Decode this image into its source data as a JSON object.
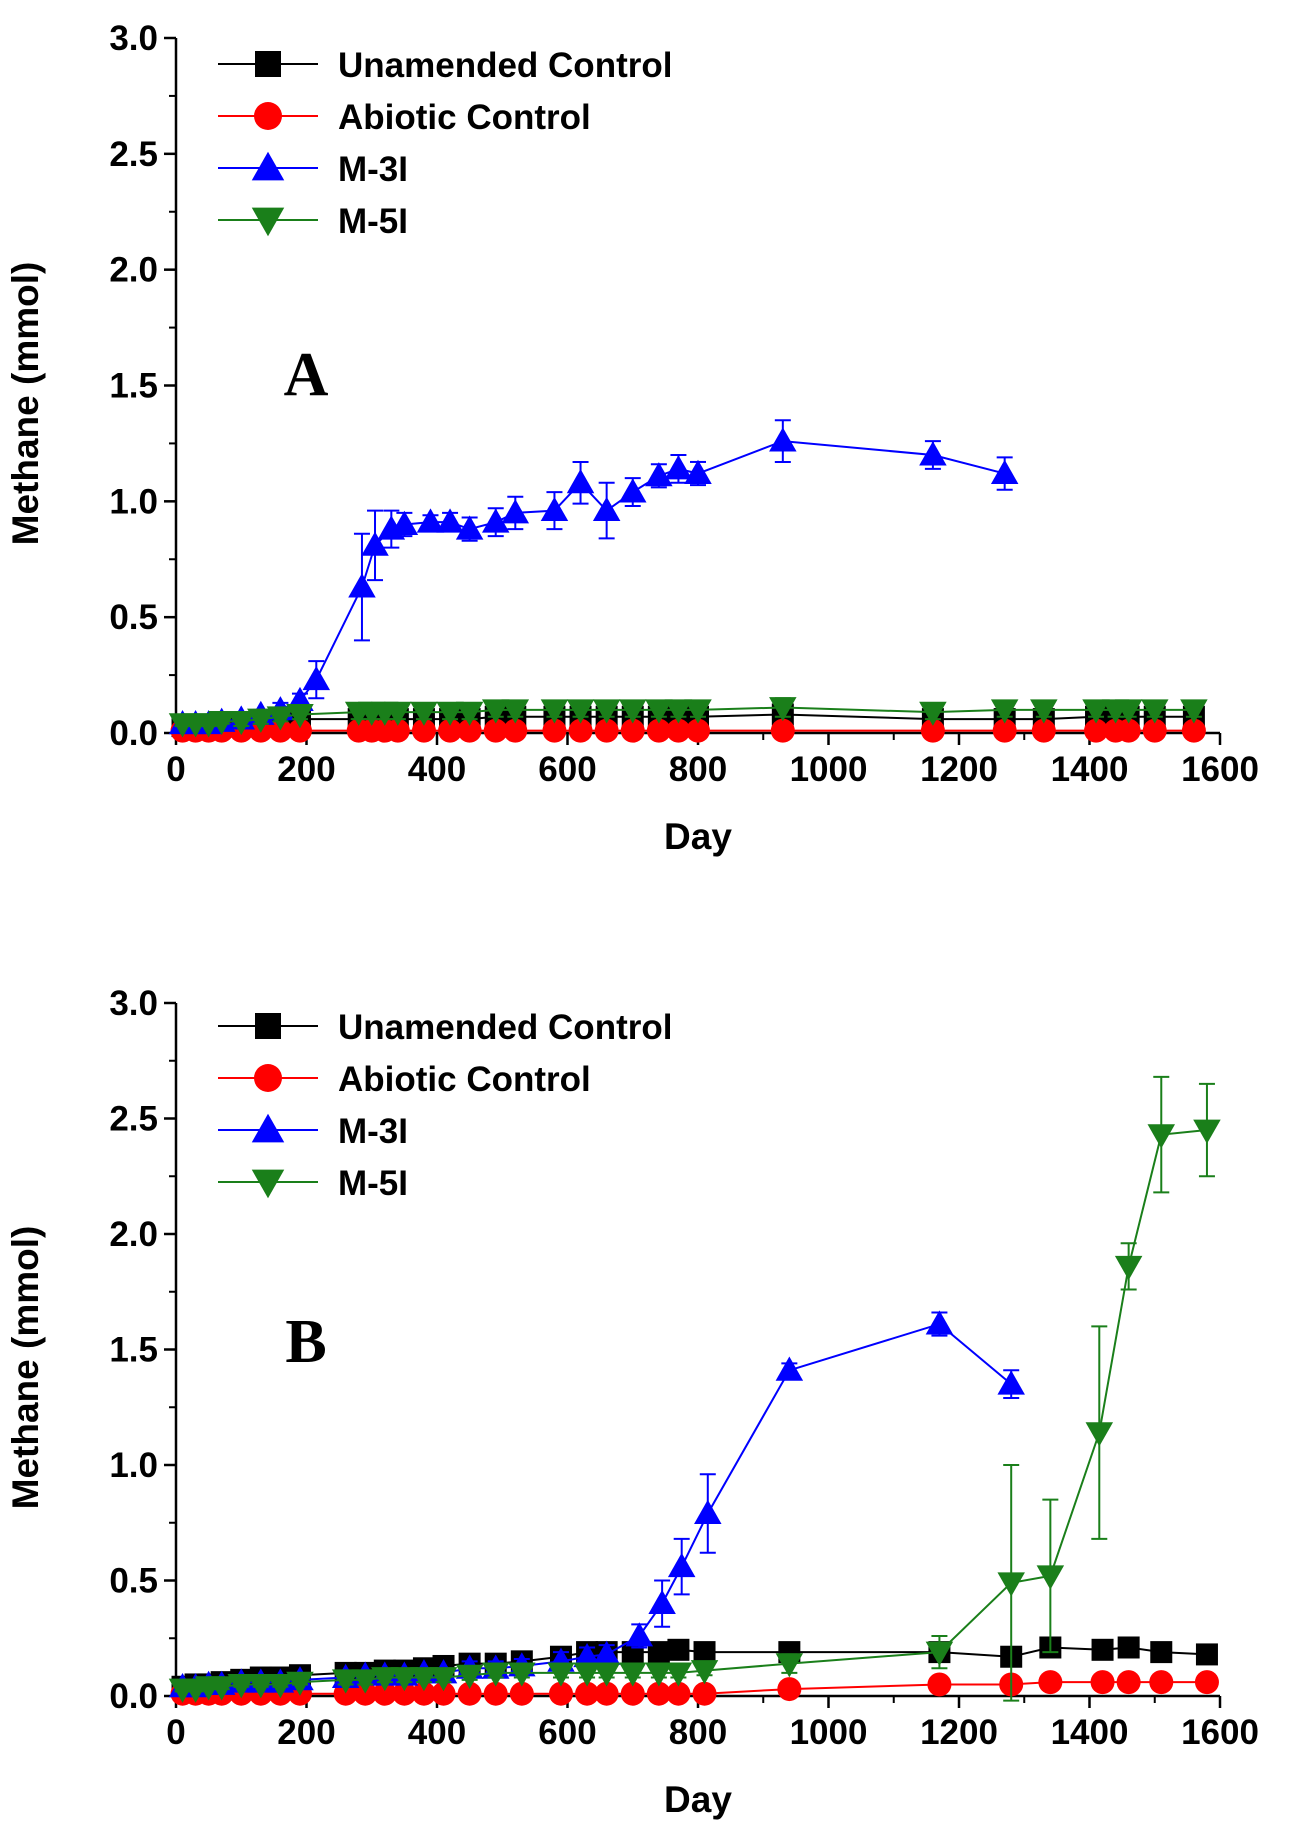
{
  "chart_data": [
    {
      "panel": "A",
      "type": "line",
      "xlabel": "Day",
      "ylabel": "Methane (mmol)",
      "xlim": [
        0,
        1600
      ],
      "ylim": [
        0,
        3.0
      ],
      "xticks": [
        0,
        200,
        400,
        600,
        800,
        1000,
        1200,
        1400,
        1600
      ],
      "xtick_labels": [
        "0",
        "200",
        "400",
        "600",
        "800",
        "1000",
        "1200",
        "1400",
        "1600"
      ],
      "yticks": [
        0,
        0.5,
        1.0,
        1.5,
        2.0,
        2.5,
        3.0
      ],
      "ytick_labels": [
        "0.0",
        "0.5",
        "1.0",
        "1.5",
        "2.0",
        "2.5",
        "3.0"
      ],
      "legend_position": "top-left",
      "series": [
        {
          "name": "Unamended Control",
          "color": "#000000",
          "marker": "square",
          "x": [
            10,
            30,
            50,
            70,
            100,
            130,
            160,
            190,
            280,
            300,
            320,
            340,
            380,
            420,
            450,
            490,
            520,
            580,
            620,
            660,
            700,
            740,
            770,
            800,
            930,
            1160,
            1270,
            1330,
            1410,
            1440,
            1460,
            1500,
            1560
          ],
          "y": [
            0.03,
            0.03,
            0.03,
            0.04,
            0.04,
            0.05,
            0.05,
            0.06,
            0.06,
            0.06,
            0.06,
            0.06,
            0.06,
            0.06,
            0.06,
            0.07,
            0.07,
            0.07,
            0.07,
            0.07,
            0.07,
            0.07,
            0.07,
            0.07,
            0.08,
            0.06,
            0.06,
            0.06,
            0.07,
            0.07,
            0.07,
            0.07,
            0.07
          ],
          "err": []
        },
        {
          "name": "Abiotic Control",
          "color": "#ff0000",
          "marker": "circle",
          "x": [
            10,
            30,
            50,
            70,
            100,
            130,
            160,
            190,
            280,
            300,
            320,
            340,
            380,
            420,
            450,
            490,
            520,
            580,
            620,
            660,
            700,
            740,
            770,
            800,
            930,
            1160,
            1270,
            1330,
            1410,
            1440,
            1460,
            1500,
            1560
          ],
          "y": [
            0.01,
            0.01,
            0.01,
            0.01,
            0.01,
            0.01,
            0.01,
            0.01,
            0.01,
            0.01,
            0.01,
            0.01,
            0.01,
            0.01,
            0.01,
            0.01,
            0.01,
            0.01,
            0.01,
            0.01,
            0.01,
            0.01,
            0.01,
            0.01,
            0.01,
            0.01,
            0.01,
            0.01,
            0.01,
            0.01,
            0.01,
            0.01,
            0.01
          ],
          "err": []
        },
        {
          "name": "M-3I",
          "color": "#0000ff",
          "marker": "triangle-up",
          "x": [
            10,
            30,
            50,
            70,
            100,
            130,
            160,
            190,
            215,
            285,
            305,
            330,
            350,
            390,
            420,
            450,
            490,
            520,
            580,
            620,
            660,
            700,
            740,
            770,
            800,
            930,
            1160,
            1270
          ],
          "y": [
            0.04,
            0.04,
            0.04,
            0.05,
            0.06,
            0.08,
            0.1,
            0.14,
            0.23,
            0.63,
            0.81,
            0.88,
            0.9,
            0.91,
            0.91,
            0.88,
            0.91,
            0.95,
            0.96,
            1.08,
            0.96,
            1.04,
            1.11,
            1.14,
            1.12,
            1.26,
            1.2,
            1.12
          ],
          "err": [
            0.01,
            0.01,
            0.01,
            0.01,
            0.02,
            0.02,
            0.03,
            0.03,
            0.08,
            0.23,
            0.15,
            0.08,
            0.05,
            0.03,
            0.04,
            0.05,
            0.06,
            0.07,
            0.08,
            0.09,
            0.12,
            0.06,
            0.05,
            0.06,
            0.05,
            0.09,
            0.06,
            0.07
          ]
        },
        {
          "name": "M-5I",
          "color": "#1a7f1a",
          "marker": "triangle-down",
          "x": [
            10,
            30,
            50,
            70,
            100,
            130,
            160,
            190,
            280,
            300,
            320,
            340,
            380,
            420,
            450,
            490,
            520,
            580,
            620,
            660,
            700,
            740,
            770,
            800,
            930,
            1160,
            1270,
            1330,
            1410,
            1440,
            1460,
            1500,
            1560
          ],
          "y": [
            0.04,
            0.04,
            0.04,
            0.05,
            0.05,
            0.06,
            0.07,
            0.08,
            0.09,
            0.09,
            0.09,
            0.09,
            0.09,
            0.09,
            0.09,
            0.1,
            0.1,
            0.1,
            0.1,
            0.1,
            0.1,
            0.1,
            0.1,
            0.1,
            0.11,
            0.09,
            0.1,
            0.1,
            0.1,
            0.1,
            0.1,
            0.1,
            0.1
          ],
          "err": [
            0.01,
            0.01,
            0.01,
            0.01,
            0.02,
            0.02,
            0.02,
            0.02,
            0.03,
            0.03,
            0.03,
            0.03,
            0.03,
            0.03,
            0.03,
            0.03,
            0.03,
            0.03,
            0.03,
            0.03,
            0.03,
            0.03,
            0.03,
            0.03,
            0.04,
            0.03,
            0.03,
            0.03,
            0.03,
            0.03,
            0.03,
            0.03,
            0.03
          ]
        }
      ]
    },
    {
      "panel": "B",
      "type": "line",
      "xlabel": "Day",
      "ylabel": "Methane (mmol)",
      "xlim": [
        0,
        1600
      ],
      "ylim": [
        0,
        3.0
      ],
      "xticks": [
        0,
        200,
        400,
        600,
        800,
        1000,
        1200,
        1400,
        1600
      ],
      "xtick_labels": [
        "0",
        "200",
        "400",
        "600",
        "800",
        "1000",
        "1200",
        "1400",
        "1600"
      ],
      "yticks": [
        0,
        0.5,
        1.0,
        1.5,
        2.0,
        2.5,
        3.0
      ],
      "ytick_labels": [
        "0.0",
        "0.5",
        "1.0",
        "1.5",
        "2.0",
        "2.5",
        "3.0"
      ],
      "legend_position": "top-left",
      "series": [
        {
          "name": "Unamended Control",
          "color": "#000000",
          "marker": "square",
          "x": [
            10,
            30,
            50,
            70,
            100,
            130,
            160,
            190,
            260,
            290,
            320,
            350,
            380,
            410,
            450,
            490,
            530,
            590,
            630,
            660,
            700,
            740,
            770,
            810,
            940,
            1170,
            1280,
            1340,
            1420,
            1460,
            1510,
            1580
          ],
          "y": [
            0.04,
            0.05,
            0.05,
            0.06,
            0.07,
            0.08,
            0.08,
            0.09,
            0.1,
            0.1,
            0.11,
            0.11,
            0.12,
            0.13,
            0.14,
            0.14,
            0.15,
            0.17,
            0.19,
            0.19,
            0.19,
            0.19,
            0.2,
            0.19,
            0.19,
            0.19,
            0.17,
            0.21,
            0.2,
            0.21,
            0.19,
            0.18
          ],
          "err": []
        },
        {
          "name": "Abiotic Control",
          "color": "#ff0000",
          "marker": "circle",
          "x": [
            10,
            30,
            50,
            70,
            100,
            130,
            160,
            190,
            260,
            290,
            320,
            350,
            380,
            410,
            450,
            490,
            530,
            590,
            630,
            660,
            700,
            740,
            770,
            810,
            940,
            1170,
            1280,
            1340,
            1420,
            1460,
            1510,
            1580
          ],
          "y": [
            0.01,
            0.01,
            0.01,
            0.01,
            0.01,
            0.01,
            0.01,
            0.01,
            0.01,
            0.01,
            0.01,
            0.01,
            0.01,
            0.01,
            0.01,
            0.01,
            0.01,
            0.01,
            0.01,
            0.01,
            0.01,
            0.01,
            0.01,
            0.01,
            0.03,
            0.05,
            0.05,
            0.06,
            0.06,
            0.06,
            0.06,
            0.06
          ],
          "err": []
        },
        {
          "name": "M-3I",
          "color": "#0000ff",
          "marker": "triangle-up",
          "x": [
            10,
            30,
            50,
            70,
            100,
            130,
            160,
            190,
            260,
            290,
            320,
            350,
            380,
            410,
            450,
            490,
            530,
            590,
            630,
            660,
            710,
            745,
            775,
            815,
            940,
            1170,
            1280
          ],
          "y": [
            0.04,
            0.04,
            0.05,
            0.05,
            0.06,
            0.06,
            0.06,
            0.07,
            0.08,
            0.09,
            0.09,
            0.09,
            0.1,
            0.1,
            0.12,
            0.12,
            0.13,
            0.15,
            0.17,
            0.18,
            0.26,
            0.4,
            0.56,
            0.79,
            1.41,
            1.61,
            1.35
          ],
          "err": [
            0.01,
            0.01,
            0.01,
            0.01,
            0.01,
            0.01,
            0.01,
            0.02,
            0.02,
            0.02,
            0.02,
            0.02,
            0.02,
            0.02,
            0.03,
            0.03,
            0.03,
            0.04,
            0.04,
            0.04,
            0.05,
            0.1,
            0.12,
            0.17,
            0.03,
            0.05,
            0.06
          ]
        },
        {
          "name": "M-5I",
          "color": "#1a7f1a",
          "marker": "triangle-down",
          "x": [
            10,
            30,
            50,
            70,
            100,
            130,
            160,
            190,
            260,
            290,
            320,
            350,
            380,
            410,
            450,
            490,
            530,
            590,
            630,
            660,
            700,
            740,
            770,
            810,
            940,
            1170,
            1280,
            1340,
            1415,
            1460,
            1510,
            1580
          ],
          "y": [
            0.03,
            0.03,
            0.04,
            0.04,
            0.05,
            0.05,
            0.05,
            0.06,
            0.07,
            0.07,
            0.08,
            0.08,
            0.08,
            0.08,
            0.09,
            0.1,
            0.1,
            0.1,
            0.1,
            0.1,
            0.1,
            0.1,
            0.1,
            0.11,
            0.14,
            0.19,
            0.49,
            0.52,
            1.14,
            1.86,
            2.43,
            2.45
          ],
          "err": [
            0.01,
            0.01,
            0.01,
            0.01,
            0.01,
            0.01,
            0.01,
            0.01,
            0.02,
            0.02,
            0.02,
            0.02,
            0.02,
            0.02,
            0.02,
            0.02,
            0.02,
            0.02,
            0.02,
            0.02,
            0.02,
            0.02,
            0.02,
            0.02,
            0.04,
            0.07,
            0.51,
            0.33,
            0.46,
            0.1,
            0.25,
            0.2
          ]
        }
      ]
    }
  ]
}
